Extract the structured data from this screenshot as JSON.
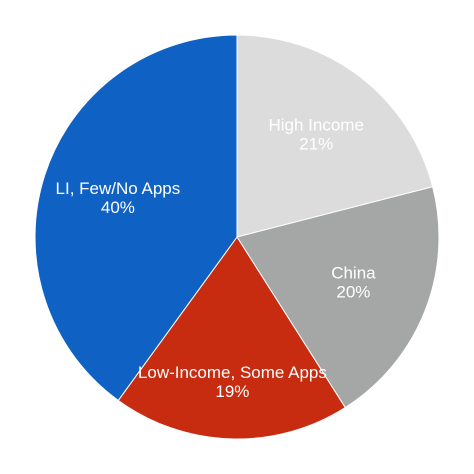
{
  "chart_data": {
    "type": "pie",
    "slices": [
      {
        "label": "High Income",
        "percent_label": "21%",
        "value": 21,
        "color": "#dcdcdc"
      },
      {
        "label": "China",
        "percent_label": "20%",
        "value": 20,
        "color": "#a5a7a6"
      },
      {
        "label": "Low-Income, Some Apps",
        "percent_label": "19%",
        "value": 19,
        "color": "#c72b10"
      },
      {
        "label": "LI, Few/No Apps",
        "percent_label": "40%",
        "value": 40,
        "color": "#0f62c3"
      }
    ],
    "start": "12 o'clock",
    "direction": "clockwise",
    "legend": "none"
  }
}
